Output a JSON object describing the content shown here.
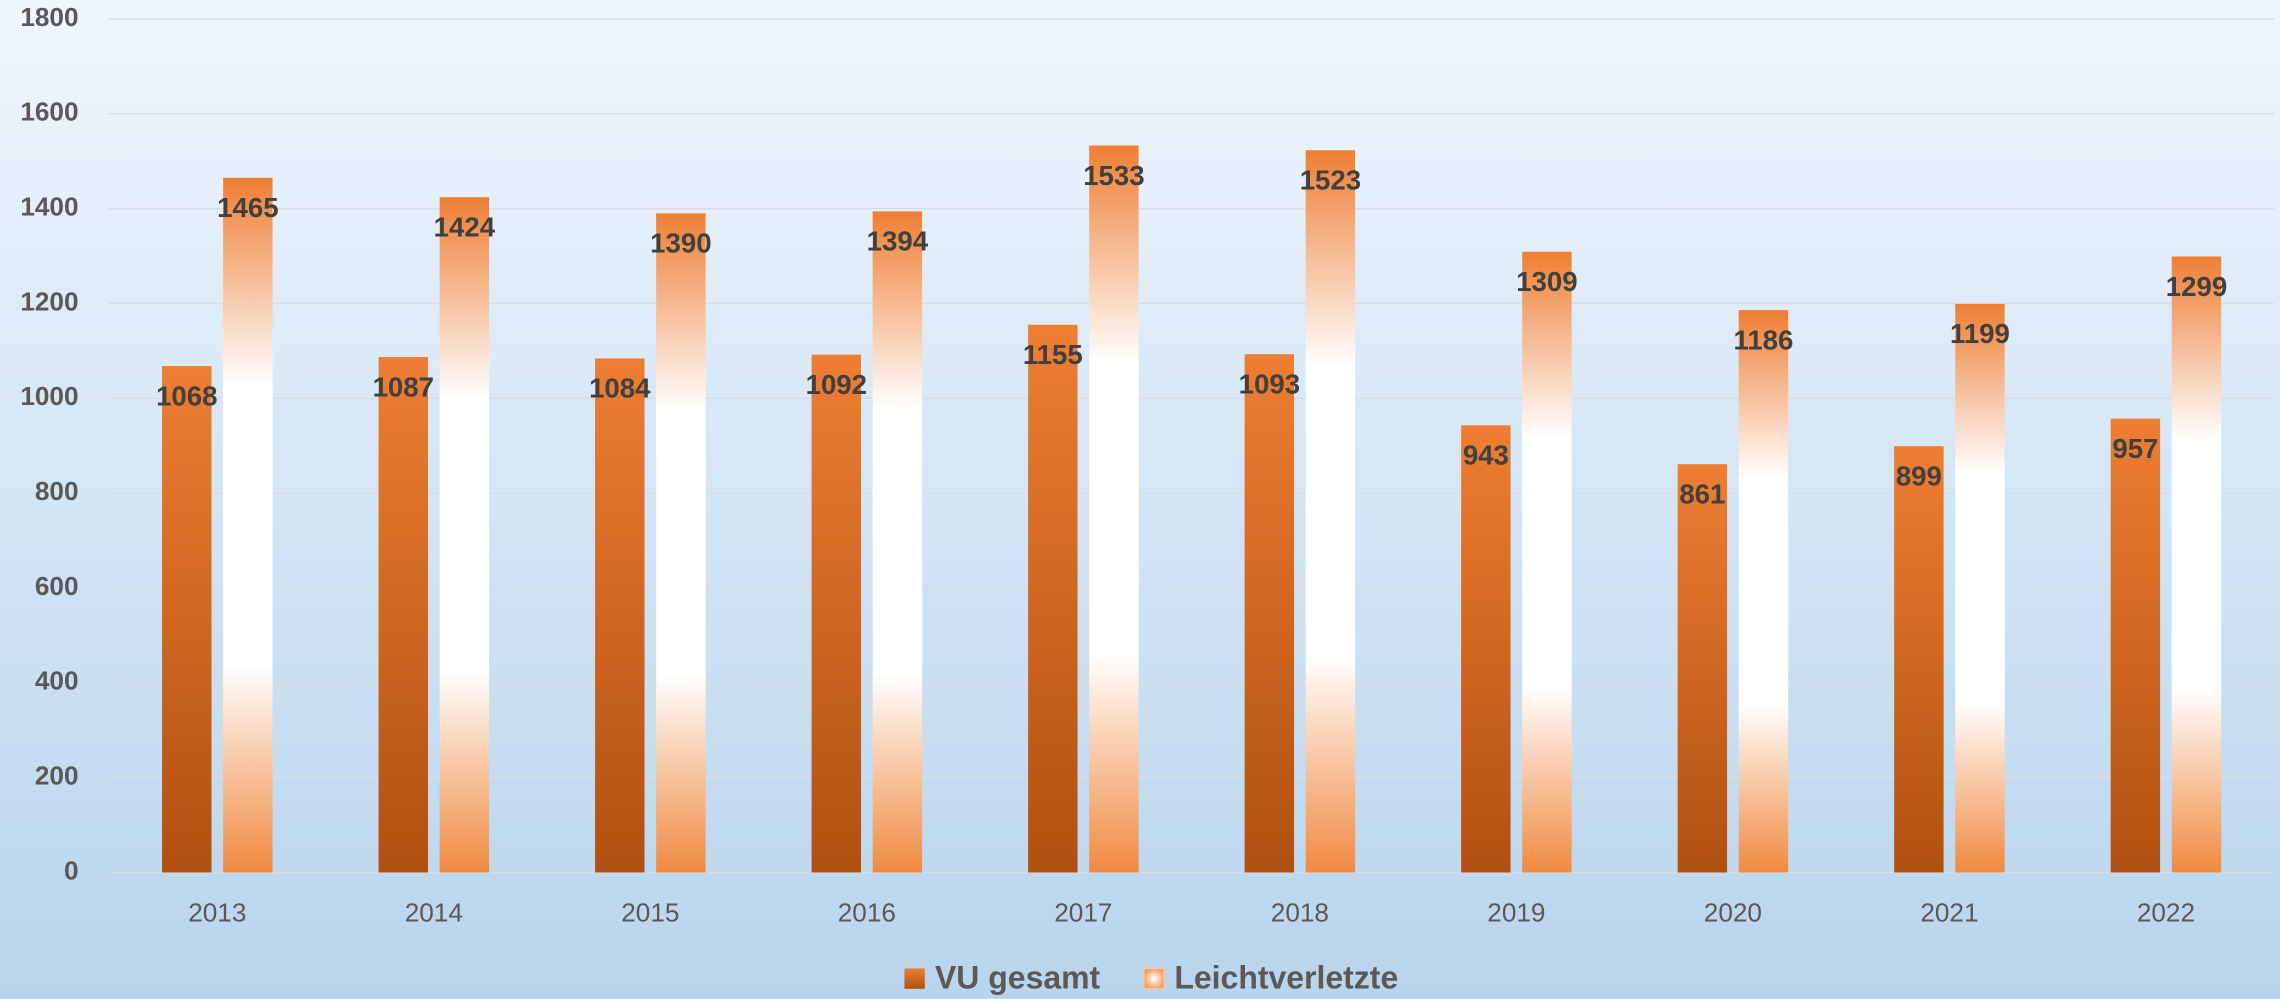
{
  "chart_data": {
    "type": "bar",
    "categories": [
      "2013",
      "2014",
      "2015",
      "2016",
      "2017",
      "2018",
      "2019",
      "2020",
      "2021",
      "2022"
    ],
    "series": [
      {
        "name": "VU gesamt",
        "color": "#ed7d31",
        "values": [
          1068,
          1087,
          1084,
          1092,
          1155,
          1093,
          943,
          861,
          899,
          957
        ]
      },
      {
        "name": "Leichtverletzte",
        "color": "#f08a40",
        "values": [
          1465,
          1424,
          1390,
          1394,
          1533,
          1523,
          1309,
          1186,
          1199,
          1299
        ]
      }
    ],
    "ylim": [
      0,
      1800
    ],
    "yticks": [
      0,
      200,
      400,
      600,
      800,
      1000,
      1200,
      1400,
      1600,
      1800
    ],
    "grid": true,
    "legend": "bottom",
    "data_labels": true
  }
}
